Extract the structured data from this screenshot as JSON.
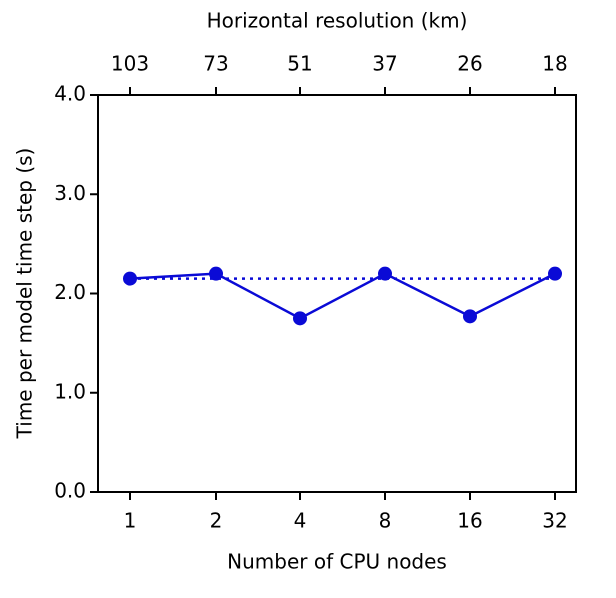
{
  "chart_data": {
    "type": "line",
    "x_label": "Number of CPU  nodes",
    "x2_label": "Horizontal resolution (km)",
    "y_label": "Time per model time step (s)",
    "categories": [
      "1",
      "2",
      "4",
      "8",
      "16",
      "32"
    ],
    "x2_categories": [
      "103",
      "73",
      "51",
      "37",
      "26",
      "18"
    ],
    "series": [
      {
        "color": "#0a0ad6",
        "values": [
          2.15,
          2.2,
          1.75,
          2.2,
          1.77,
          2.2
        ]
      }
    ],
    "reference_line": {
      "value": 2.15,
      "style": "dotted",
      "color": "#0a0ad6"
    },
    "ylim": [
      0,
      4
    ],
    "yticks": [
      {
        "value": 0,
        "label": "0.0"
      },
      {
        "value": 1,
        "label": "1.0"
      },
      {
        "value": 2,
        "label": "2.0"
      },
      {
        "value": 3,
        "label": "3.0"
      },
      {
        "value": 4,
        "label": "4.0"
      }
    ]
  }
}
